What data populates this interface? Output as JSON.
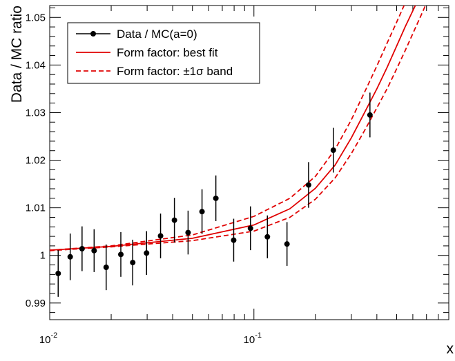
{
  "chart_data": {
    "type": "scatter",
    "xlabel": "x",
    "ylabel": "Data / MC ratio",
    "xscale": "log",
    "xlim": [
      0.01,
      0.9
    ],
    "ylim": [
      0.9865,
      1.0525
    ],
    "grid": false,
    "legend_position": "top-left",
    "x_ticks": [
      {
        "value": 0.01,
        "base": "10",
        "exp": "-2"
      },
      {
        "value": 0.1,
        "base": "10",
        "exp": "-1"
      }
    ],
    "y_ticks": [
      {
        "value": 0.99,
        "label": "0.99"
      },
      {
        "value": 1.0,
        "label": "1"
      },
      {
        "value": 1.01,
        "label": "1.01"
      },
      {
        "value": 1.02,
        "label": "1.02"
      },
      {
        "value": 1.03,
        "label": "1.03"
      },
      {
        "value": 1.04,
        "label": "1.04"
      },
      {
        "value": 1.05,
        "label": "1.05"
      }
    ],
    "legend": [
      {
        "label": "Data / MC(a=0)",
        "style": "marker"
      },
      {
        "label": "Form factor: best fit",
        "style": "solid"
      },
      {
        "label": "Form factor: ±1σ band",
        "style": "dashed"
      }
    ],
    "data_points": [
      {
        "x": 0.011,
        "y": 0.9962,
        "err": 0.0049
      },
      {
        "x": 0.0126,
        "y": 0.9997,
        "err": 0.0049
      },
      {
        "x": 0.0144,
        "y": 1.0014,
        "err": 0.0047
      },
      {
        "x": 0.0165,
        "y": 1.001,
        "err": 0.0045
      },
      {
        "x": 0.0189,
        "y": 0.9975,
        "err": 0.0048
      },
      {
        "x": 0.0223,
        "y": 1.0002,
        "err": 0.0047
      },
      {
        "x": 0.0255,
        "y": 0.9985,
        "err": 0.0048
      },
      {
        "x": 0.0298,
        "y": 1.0005,
        "err": 0.0046
      },
      {
        "x": 0.0349,
        "y": 1.0041,
        "err": 0.0047
      },
      {
        "x": 0.0408,
        "y": 1.0074,
        "err": 0.0047
      },
      {
        "x": 0.0476,
        "y": 1.0048,
        "err": 0.0046
      },
      {
        "x": 0.0557,
        "y": 1.0092,
        "err": 0.0047
      },
      {
        "x": 0.0651,
        "y": 1.012,
        "err": 0.0048
      },
      {
        "x": 0.0796,
        "y": 1.0032,
        "err": 0.0045
      },
      {
        "x": 0.0962,
        "y": 1.0057,
        "err": 0.0046
      },
      {
        "x": 0.1164,
        "y": 1.0039,
        "err": 0.0045
      },
      {
        "x": 0.1452,
        "y": 1.0024,
        "err": 0.0046
      },
      {
        "x": 0.1852,
        "y": 1.0148,
        "err": 0.0048
      },
      {
        "x": 0.2448,
        "y": 1.0221,
        "err": 0.0047
      },
      {
        "x": 0.37,
        "y": 1.0295,
        "err": 0.0047
      }
    ],
    "curves": [
      {
        "name": "Form factor: best fit",
        "style": "solid",
        "x": [
          0.01,
          0.02,
          0.05,
          0.1,
          0.15,
          0.2,
          0.25,
          0.3,
          0.35,
          0.4,
          0.45,
          0.5,
          0.55,
          0.6,
          0.65,
          0.7
        ],
        "y": [
          1.0011,
          1.0019,
          1.0036,
          1.0064,
          1.0098,
          1.0141,
          1.019,
          1.0247,
          1.0302,
          1.035,
          1.0396,
          1.044,
          1.048,
          1.0514,
          1.0545,
          1.0575
        ]
      },
      {
        "name": "upper",
        "style": "dashed",
        "x": [
          0.01,
          0.02,
          0.05,
          0.1,
          0.15,
          0.2,
          0.25,
          0.3,
          0.35,
          0.4,
          0.45,
          0.5,
          0.55,
          0.6
        ],
        "y": [
          1.0011,
          1.002,
          1.0043,
          1.0082,
          1.012,
          1.0166,
          1.0223,
          1.0285,
          1.0345,
          1.0398,
          1.0447,
          1.049,
          1.053,
          1.057
        ]
      },
      {
        "name": "lower",
        "style": "dashed",
        "x": [
          0.01,
          0.02,
          0.05,
          0.1,
          0.15,
          0.2,
          0.25,
          0.3,
          0.35,
          0.4,
          0.45,
          0.5,
          0.55,
          0.6,
          0.65,
          0.7,
          0.75
        ],
        "y": [
          1.001,
          1.0018,
          1.0031,
          1.0051,
          1.008,
          1.0118,
          1.0163,
          1.0214,
          1.0264,
          1.031,
          1.0351,
          1.0392,
          1.043,
          1.0466,
          1.0499,
          1.053,
          1.056
        ]
      }
    ],
    "colors": {
      "data": "#000000",
      "fit": "#e00000",
      "axis": "#000000"
    }
  }
}
